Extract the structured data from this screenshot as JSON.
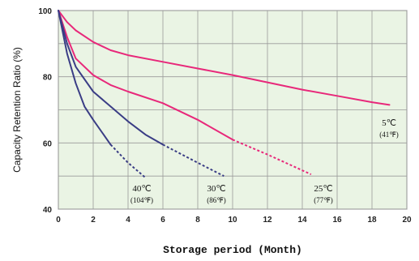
{
  "chart_data": {
    "type": "line",
    "xlabel": "Storage period (Month)",
    "ylabel": "Capacity Retention Ratio (%)",
    "xlim": [
      0,
      20
    ],
    "ylim": [
      40,
      100
    ],
    "xticks": [
      "0",
      "2",
      "4",
      "6",
      "8",
      "10",
      "12",
      "14",
      "16",
      "18",
      "20"
    ],
    "yticks": [
      "40",
      "60",
      "80",
      "100"
    ],
    "grid": true,
    "background_color": "#eaf4e4",
    "series": [
      {
        "name": "5℃",
        "name_sub": "(41℉)",
        "color": "#e8287a",
        "solid": [
          [
            0,
            100
          ],
          [
            0.5,
            96.5
          ],
          [
            1,
            94
          ],
          [
            2,
            90.5
          ],
          [
            3,
            88
          ],
          [
            4,
            86.5
          ],
          [
            6,
            84.5
          ],
          [
            8,
            82.5
          ],
          [
            10,
            80.5
          ],
          [
            12,
            78.3
          ],
          [
            14,
            76.1
          ],
          [
            16,
            74.2
          ],
          [
            18,
            72.3
          ],
          [
            19,
            71.5
          ]
        ],
        "dashed": []
      },
      {
        "name": "25℃",
        "name_sub": "(77℉)",
        "color": "#e8287a",
        "solid": [
          [
            0,
            100
          ],
          [
            0.5,
            92
          ],
          [
            1,
            85.5
          ],
          [
            2,
            80.5
          ],
          [
            3,
            77.5
          ],
          [
            4,
            75.5
          ],
          [
            6,
            72
          ],
          [
            8,
            67
          ],
          [
            10,
            61
          ]
        ],
        "dashed": [
          [
            10,
            61
          ],
          [
            12,
            56.5
          ],
          [
            14.5,
            50.5
          ]
        ]
      },
      {
        "name": "30℃",
        "name_sub": "(86℉)",
        "color": "#3a3d85",
        "solid": [
          [
            0,
            100
          ],
          [
            0.5,
            90
          ],
          [
            1,
            83
          ],
          [
            2,
            75.5
          ],
          [
            3,
            71
          ],
          [
            4,
            66.5
          ],
          [
            5,
            62.5
          ],
          [
            6,
            59.5
          ]
        ],
        "dashed": [
          [
            6,
            59.5
          ],
          [
            8,
            54
          ],
          [
            9.5,
            50
          ]
        ]
      },
      {
        "name": "40℃",
        "name_sub": "(104℉)",
        "color": "#3a3d85",
        "solid": [
          [
            0,
            100
          ],
          [
            0.5,
            87
          ],
          [
            1,
            78
          ],
          [
            1.5,
            71
          ],
          [
            2,
            67
          ],
          [
            3,
            59.5
          ]
        ],
        "dashed": [
          [
            3,
            59.5
          ],
          [
            4,
            54
          ],
          [
            5,
            49.5
          ]
        ]
      }
    ]
  }
}
